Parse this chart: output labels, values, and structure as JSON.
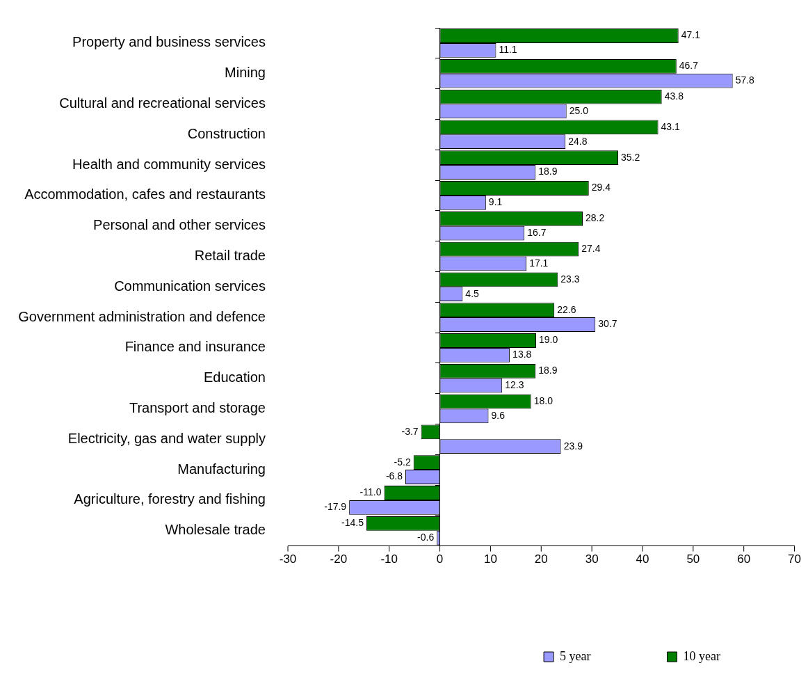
{
  "chart_data": {
    "type": "bar",
    "orientation": "horizontal",
    "categories": [
      "Property and business services",
      "Mining",
      "Cultural and recreational services",
      "Construction",
      "Health and community services",
      "Accommodation, cafes and restaurants",
      "Personal and other services",
      "Retail trade",
      "Communication services",
      "Government administration and defence",
      "Finance and insurance",
      "Education",
      "Transport and storage",
      "Electricity, gas and water supply",
      "Manufacturing",
      "Agriculture, forestry and fishing",
      "Wholesale trade"
    ],
    "series": [
      {
        "name": "5 year",
        "color": "#9999ff",
        "values": [
          11.1,
          57.8,
          25.0,
          24.8,
          18.9,
          9.1,
          16.7,
          17.1,
          4.5,
          30.7,
          13.8,
          12.3,
          9.6,
          23.9,
          -6.8,
          -17.9,
          -0.6
        ],
        "value_labels": [
          "11.1",
          "57.8",
          "25.0",
          "24.8",
          "18.9",
          "9.1",
          "16.7",
          "17.1",
          "4.5",
          "30.7",
          "13.8",
          "12.3",
          "9.6",
          "23.9",
          "-6.8",
          "-17.9",
          "-0.6"
        ]
      },
      {
        "name": "10 year",
        "color": "#008000",
        "values": [
          47.1,
          46.7,
          43.8,
          43.1,
          35.2,
          29.4,
          28.2,
          27.4,
          23.3,
          22.6,
          19.0,
          18.9,
          18.0,
          -3.7,
          -5.2,
          -11.0,
          -14.5
        ],
        "value_labels": [
          "47.1",
          "46.7",
          "43.8",
          "43.1",
          "35.2",
          "29.4",
          "28.2",
          "27.4",
          "23.3",
          "22.6",
          "19.0",
          "18.9",
          "18.0",
          "-3.7",
          "-5.2",
          "-11.0",
          "-14.5"
        ]
      }
    ],
    "xlim": [
      -30,
      70
    ],
    "xticks": [
      -30,
      -20,
      -10,
      0,
      10,
      20,
      30,
      40,
      50,
      60,
      70
    ],
    "legend": "bottom right"
  }
}
